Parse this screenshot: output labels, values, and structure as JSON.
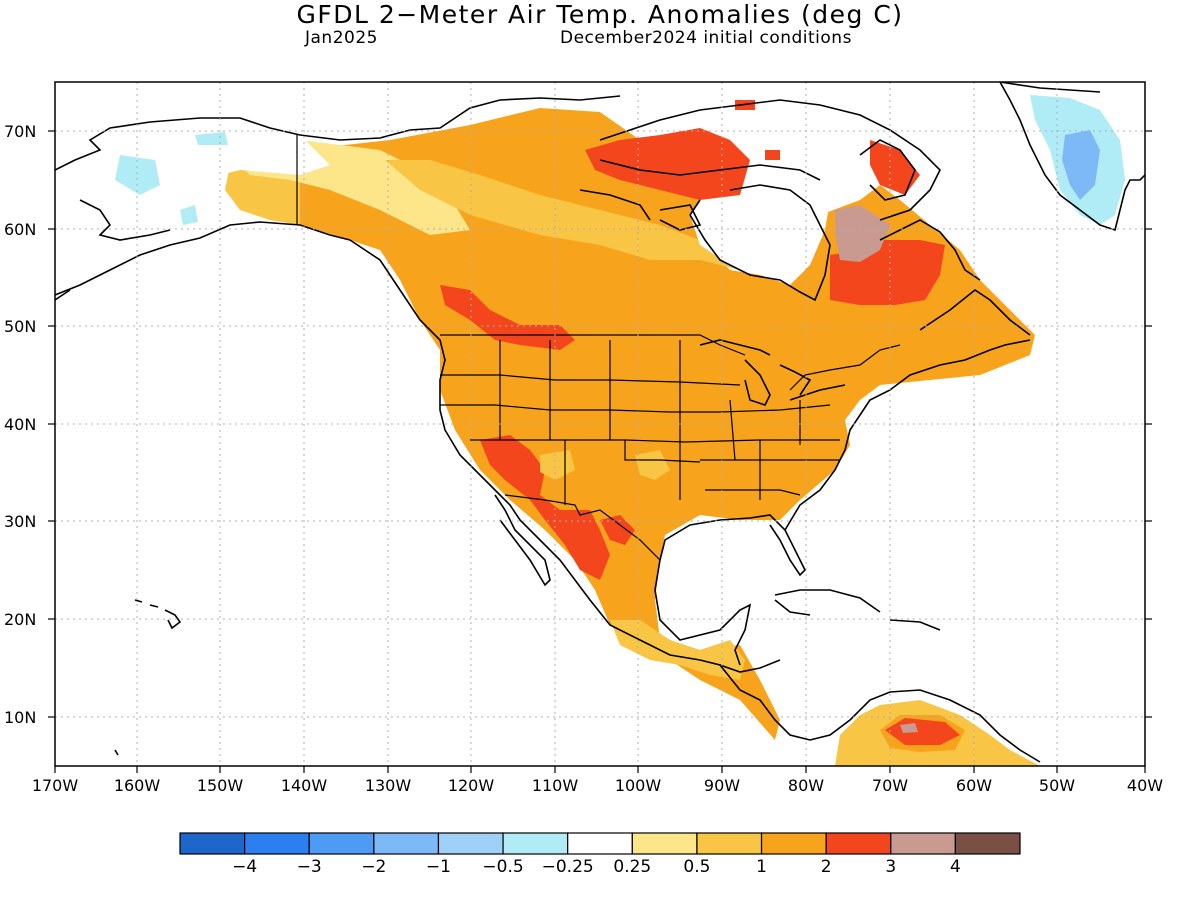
{
  "title": "GFDL 2−Meter Air Temp. Anomalies (deg C)",
  "subtitle_left": "Jan2025",
  "subtitle_right": "December2024 initial conditions",
  "lat_labels": [
    "70N",
    "60N",
    "50N",
    "40N",
    "30N",
    "20N",
    "10N"
  ],
  "lon_labels": [
    "170W",
    "160W",
    "150W",
    "140W",
    "130W",
    "120W",
    "110W",
    "100W",
    "90W",
    "80W",
    "70W",
    "60W",
    "50W",
    "40W"
  ],
  "colorbar": {
    "colors": [
      "#1f66cc",
      "#2b7ff0",
      "#4d9bf5",
      "#7db8f7",
      "#9fd0f7",
      "#b0ecf5",
      "#ffffff",
      "#fde68a",
      "#f8c544",
      "#f8a31c",
      "#f4461c",
      "#c89a90",
      "#7a5044"
    ],
    "labels": [
      "−4",
      "−3",
      "−2",
      "−1",
      "−0.5",
      "−0.25",
      "0.25",
      "0.5",
      "1",
      "2",
      "3",
      "4"
    ]
  },
  "legend_colors": {
    "white": "#ffffff",
    "light_blue": "#b0ecf5",
    "blue": "#7db8f7",
    "yellow": "#fde68a",
    "light_orange": "#f8c544",
    "orange": "#f8a31c",
    "red": "#f4461c",
    "mauve": "#c89a90"
  }
}
